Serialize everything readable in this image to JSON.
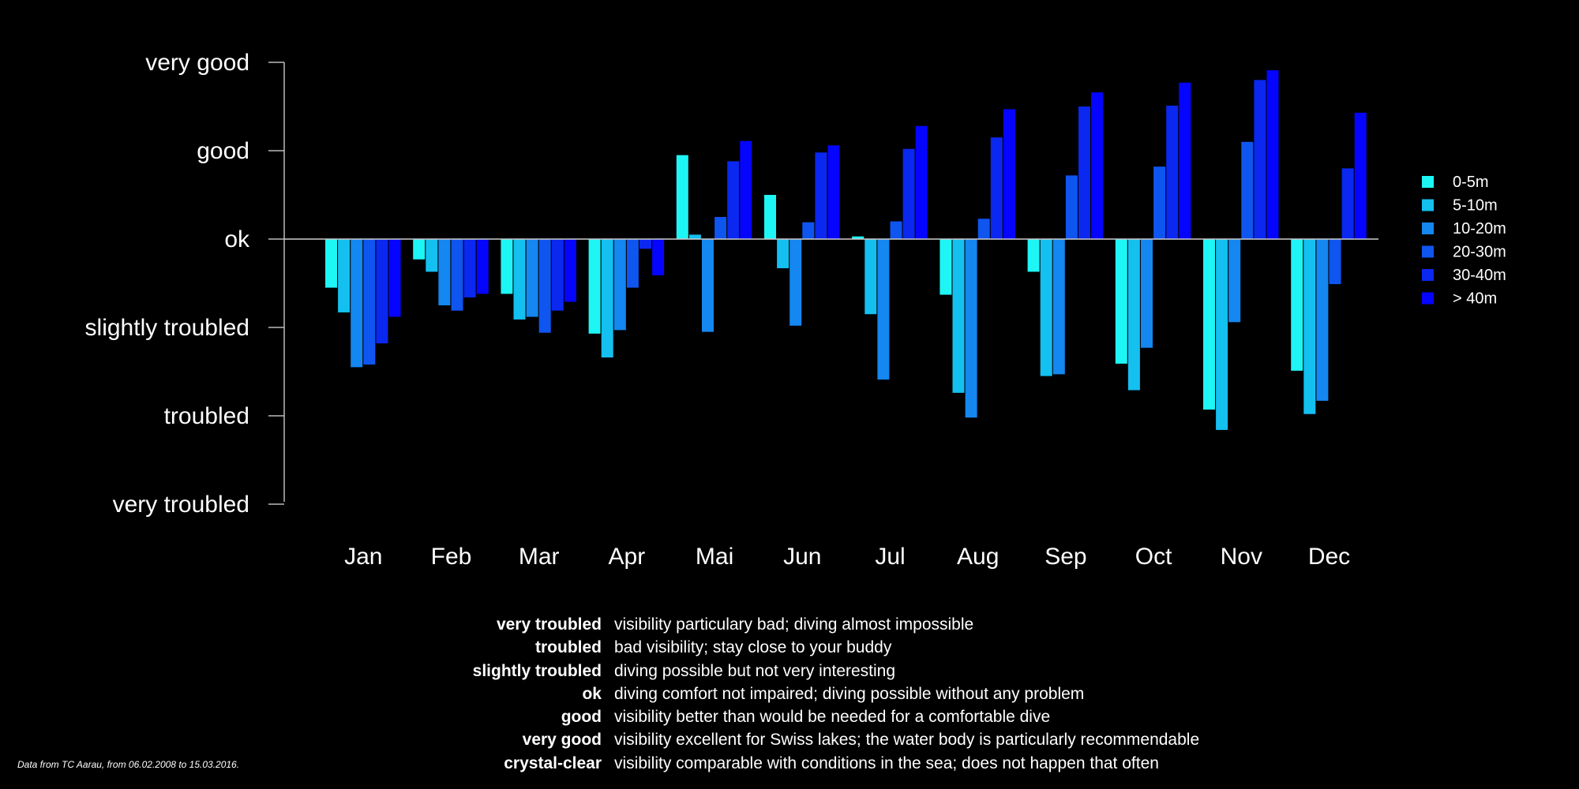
{
  "chart_data": {
    "type": "bar",
    "categories": [
      "Jan",
      "Feb",
      "Mar",
      "Apr",
      "Mai",
      "Jun",
      "Jul",
      "Aug",
      "Sep",
      "Oct",
      "Nov",
      "Dec"
    ],
    "y_levels": [
      "very troubled",
      "troubled",
      "slightly troubled",
      "ok",
      "good",
      "very good"
    ],
    "y_level_values": [
      -3,
      -2,
      -1,
      0,
      1,
      2
    ],
    "ylim": [
      -3,
      2
    ],
    "baseline": 0,
    "legend_position": "right",
    "series": [
      {
        "name": "0-5m",
        "color": "#1ef5f5",
        "values": [
          -0.55,
          -0.23,
          -0.62,
          -1.07,
          0.95,
          0.5,
          0.03,
          -0.63,
          -0.37,
          -1.41,
          -1.93,
          -1.49
        ]
      },
      {
        "name": "5-10m",
        "color": "#14c0f0",
        "values": [
          -0.83,
          -0.37,
          -0.91,
          -1.34,
          0.05,
          -0.33,
          -0.85,
          -1.74,
          -1.55,
          -1.71,
          -2.16,
          -1.98
        ]
      },
      {
        "name": "10-20m",
        "color": "#1487f0",
        "values": [
          -1.45,
          -0.75,
          -0.88,
          -1.03,
          -1.05,
          -0.98,
          -1.59,
          -2.02,
          -1.53,
          -1.23,
          -0.94,
          -1.83
        ]
      },
      {
        "name": "20-30m",
        "color": "#0f55f0",
        "values": [
          -1.42,
          -0.81,
          -1.06,
          -0.55,
          0.25,
          0.19,
          0.2,
          0.23,
          0.72,
          0.82,
          1.1,
          -0.51
        ]
      },
      {
        "name": "30-40m",
        "color": "#0a28f0",
        "values": [
          -1.18,
          -0.66,
          -0.81,
          -0.11,
          0.88,
          0.98,
          1.02,
          1.15,
          1.5,
          1.51,
          1.8,
          0.8
        ]
      },
      {
        "name": "> 40m",
        "color": "#0505ff",
        "values": [
          -0.88,
          -0.62,
          -0.71,
          -0.41,
          1.11,
          1.06,
          1.28,
          1.47,
          1.66,
          1.77,
          1.91,
          1.43
        ]
      }
    ]
  },
  "glossary": [
    {
      "term": "very troubled",
      "definition": "visibility particulary bad; diving almost impossible"
    },
    {
      "term": "troubled",
      "definition": "bad visibility; stay close to your buddy"
    },
    {
      "term": "slightly troubled",
      "definition": "diving possible but not very interesting"
    },
    {
      "term": "ok",
      "definition": "diving comfort not impaired; diving possible without any problem"
    },
    {
      "term": "good",
      "definition": "visibility better than would be needed for a comfortable dive"
    },
    {
      "term": "very good",
      "definition": "visibility excellent for Swiss lakes; the water body is particularly recommendable"
    },
    {
      "term": "crystal-clear",
      "definition": "visibility comparable with conditions in the sea; does not happen that often"
    }
  ],
  "source_note": "Data from TC Aarau, from 06.02.2008 to 15.03.2016."
}
